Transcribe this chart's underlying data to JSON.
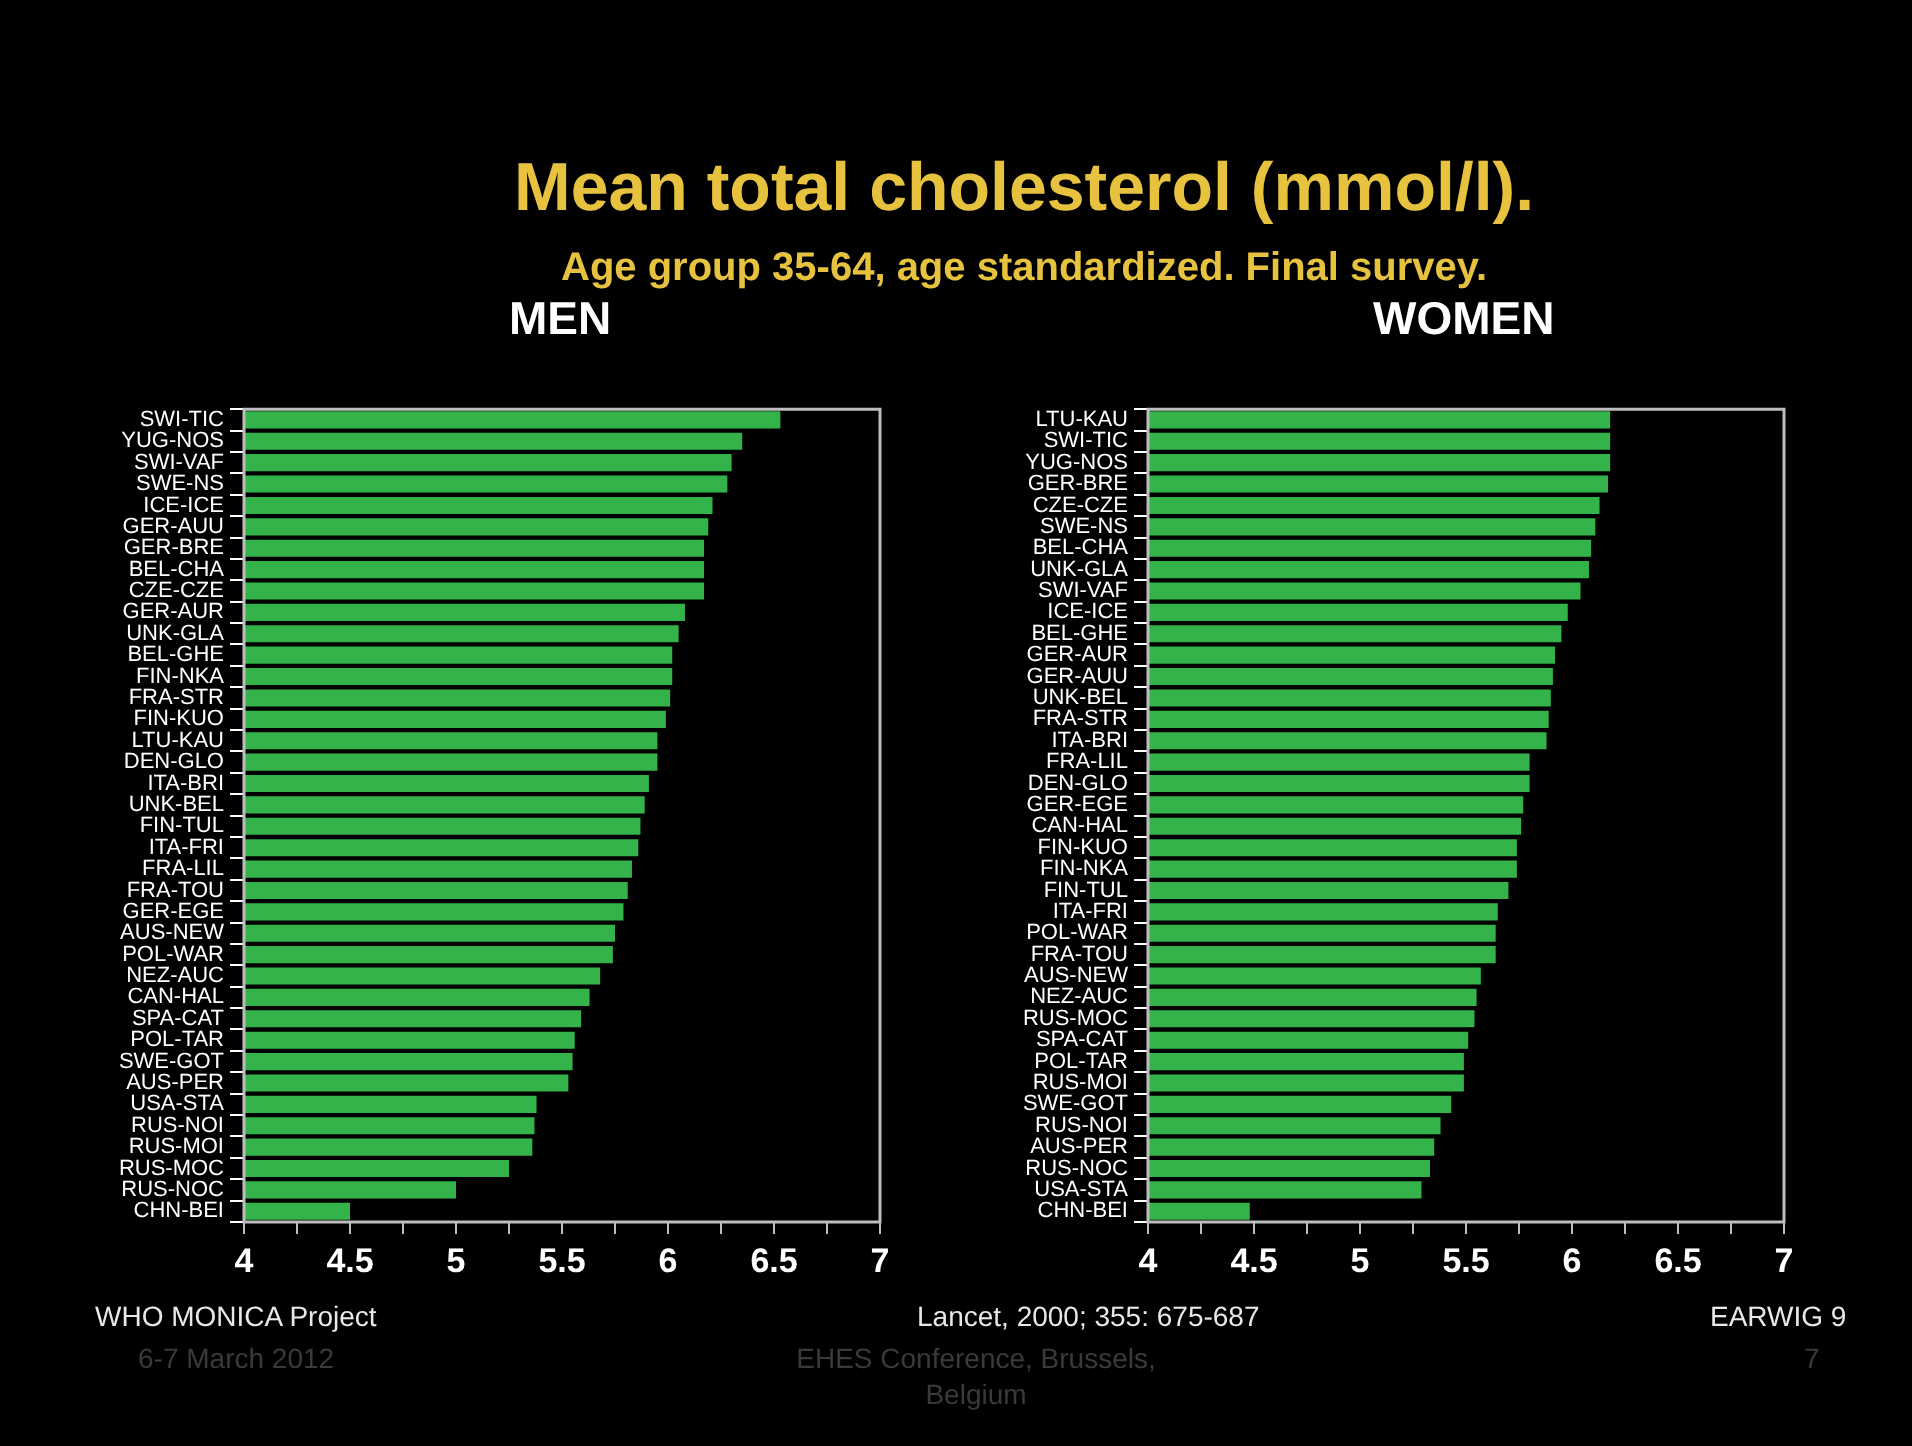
{
  "chart_data": [
    {
      "type": "bar",
      "orientation": "horizontal",
      "title": "MEN",
      "annotations": [
        "Mean total cholesterol (mmol/l).",
        "Age group 35-64, age standardized. Final survey.",
        "WHO MONICA Project",
        "6-7 March 2012"
      ],
      "categories": [
        "SWI-TIC",
        "YUG-NOS",
        "SWI-VAF",
        "SWE-NS",
        "ICE-ICE",
        "GER-AUU",
        "GER-BRE",
        "BEL-CHA",
        "CZE-CZE",
        "GER-AUR",
        "UNK-GLA",
        "BEL-GHE",
        "FIN-NKA",
        "FRA-STR",
        "FIN-KUO",
        "LTU-KAU",
        "DEN-GLO",
        "ITA-BRI",
        "UNK-BEL",
        "FIN-TUL",
        "ITA-FRI",
        "FRA-LIL",
        "FRA-TOU",
        "GER-EGE",
        "AUS-NEW",
        "POL-WAR",
        "NEZ-AUC",
        "CAN-HAL",
        "SPA-CAT",
        "POL-TAR",
        "SWE-GOT",
        "AUS-PER",
        "USA-STA",
        "RUS-NOI",
        "RUS-MOI",
        "RUS-MOC",
        "RUS-NOC",
        "CHN-BEI"
      ],
      "values": [
        6.53,
        6.35,
        6.3,
        6.28,
        6.21,
        6.19,
        6.17,
        6.17,
        6.17,
        6.08,
        6.05,
        6.02,
        6.02,
        6.01,
        5.99,
        5.95,
        5.95,
        5.91,
        5.89,
        5.87,
        5.86,
        5.83,
        5.81,
        5.79,
        5.75,
        5.74,
        5.68,
        5.63,
        5.59,
        5.56,
        5.55,
        5.53,
        5.38,
        5.37,
        5.36,
        5.25,
        5.0,
        4.5
      ],
      "color": "#33b34a",
      "xlim": [
        4,
        7
      ],
      "xticks": [
        4,
        {
          "value": 4.25,
          "label": null
        },
        4.5,
        {
          "value": 4.75,
          "label": null
        },
        5,
        {
          "value": 5.25,
          "label": null
        },
        5.5,
        {
          "value": 5.75,
          "label": null
        },
        6,
        {
          "value": 6.25,
          "label": null
        },
        6.5,
        {
          "value": 6.75,
          "label": null
        },
        7
      ],
      "grid": false,
      "legend": false
    },
    {
      "type": "bar",
      "orientation": "horizontal",
      "title": "WOMEN",
      "annotations": [
        "Lancet, 2000; 355: 675-687",
        "EHES Conference, Brussels, Belgium",
        "EARWIG 9",
        "7"
      ],
      "categories": [
        "LTU-KAU",
        "SWI-TIC",
        "YUG-NOS",
        "GER-BRE",
        "CZE-CZE",
        "SWE-NS",
        "BEL-CHA",
        "UNK-GLA",
        "SWI-VAF",
        "ICE-ICE",
        "BEL-GHE",
        "GER-AUR",
        "GER-AUU",
        "UNK-BEL",
        "FRA-STR",
        "ITA-BRI",
        "FRA-LIL",
        "DEN-GLO",
        "GER-EGE",
        "CAN-HAL",
        "FIN-KUO",
        "FIN-NKA",
        "FIN-TUL",
        "ITA-FRI",
        "POL-WAR",
        "FRA-TOU",
        "AUS-NEW",
        "NEZ-AUC",
        "RUS-MOC",
        "SPA-CAT",
        "POL-TAR",
        "RUS-MOI",
        "SWE-GOT",
        "RUS-NOI",
        "AUS-PER",
        "RUS-NOC",
        "USA-STA",
        "CHN-BEI"
      ],
      "values": [
        6.18,
        6.18,
        6.18,
        6.17,
        6.13,
        6.11,
        6.09,
        6.08,
        6.04,
        5.98,
        5.95,
        5.92,
        5.91,
        5.9,
        5.89,
        5.88,
        5.8,
        5.8,
        5.77,
        5.76,
        5.74,
        5.74,
        5.7,
        5.65,
        5.64,
        5.64,
        5.57,
        5.55,
        5.54,
        5.51,
        5.49,
        5.49,
        5.43,
        5.38,
        5.35,
        5.33,
        5.29,
        4.48
      ],
      "color": "#33b34a",
      "xlim": [
        4,
        7
      ],
      "xticks": [
        4,
        {
          "value": 4.25,
          "label": null
        },
        4.5,
        {
          "value": 4.75,
          "label": null
        },
        5,
        {
          "value": 5.25,
          "label": null
        },
        5.5,
        {
          "value": 5.75,
          "label": null
        },
        6,
        {
          "value": 6.25,
          "label": null
        },
        6.5,
        {
          "value": 6.75,
          "label": null
        },
        7
      ],
      "grid": false,
      "legend": false
    }
  ]
}
